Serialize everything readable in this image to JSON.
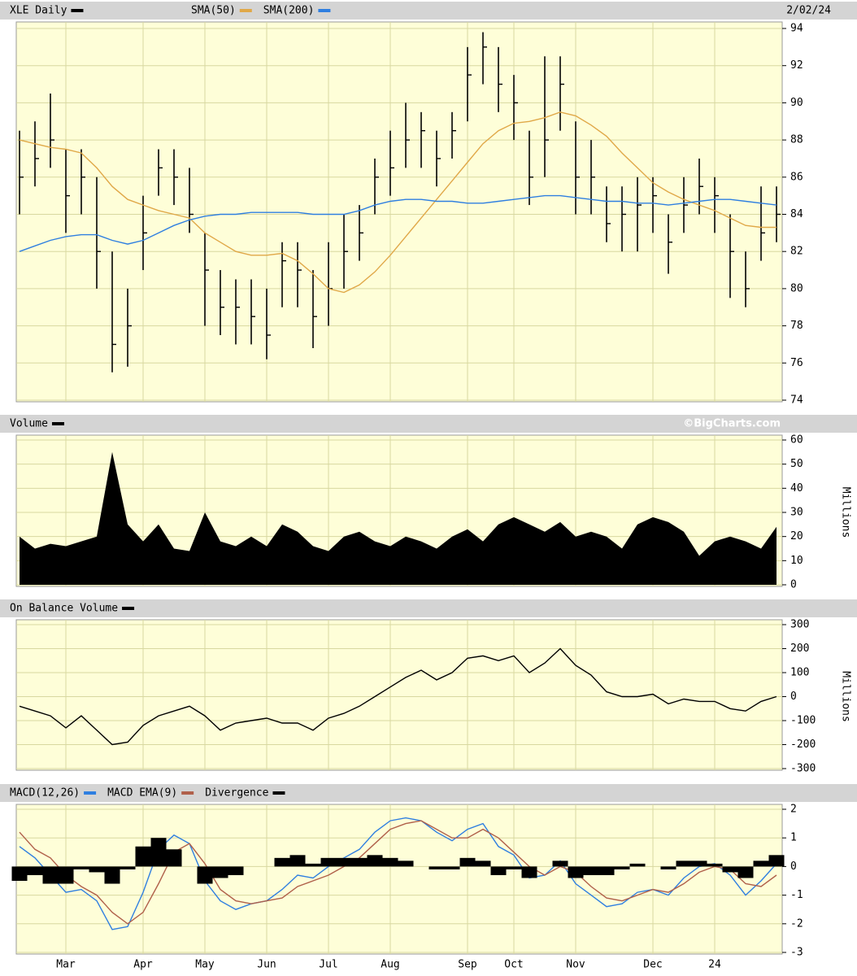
{
  "chart_data": [
    {
      "type": "ohlc",
      "date": "2/02/24",
      "ylim": [
        74,
        94
      ],
      "yticks": [
        74,
        76,
        78,
        80,
        82,
        84,
        86,
        88,
        90,
        92,
        94
      ],
      "grid": true,
      "series": [
        {
          "name": "XLE Daily",
          "color": "#000000",
          "kind": "ohlc",
          "values": [
            86,
            87,
            88,
            85,
            86,
            82,
            77,
            78,
            83,
            86.5,
            86,
            84,
            81,
            79,
            79,
            78.5,
            77.5,
            81.5,
            81,
            78.5,
            80,
            82,
            83,
            86,
            86.5,
            88,
            88.5,
            87,
            88.5,
            91.5,
            93,
            91,
            90,
            86,
            88,
            91,
            86,
            86,
            83.5,
            84,
            84.5,
            85,
            82.5,
            84.5,
            85.5,
            85,
            82,
            80,
            83,
            84
          ],
          "high": [
            88.5,
            89,
            90.5,
            87.5,
            87.5,
            86,
            82,
            80,
            85,
            87.5,
            87.5,
            86.5,
            83,
            81,
            80.5,
            80.5,
            80,
            82.5,
            82.5,
            81,
            82.5,
            84,
            84.5,
            87,
            88.5,
            90,
            89.5,
            88.5,
            89.5,
            93,
            93.8,
            93,
            91.5,
            88.5,
            92.5,
            92.5,
            89,
            88,
            85.5,
            85.5,
            86,
            86,
            84,
            86,
            87,
            86,
            84,
            82,
            85.5,
            85.5
          ],
          "low": [
            84,
            85.5,
            86.5,
            83,
            84,
            80,
            75.5,
            75.8,
            81,
            85,
            84.5,
            83,
            78,
            77.5,
            77,
            77,
            76.2,
            79,
            79,
            76.8,
            78,
            80,
            81.5,
            84,
            85,
            86.5,
            86.5,
            85.5,
            87,
            89,
            91,
            89.5,
            88,
            84.5,
            86,
            88.5,
            84,
            84,
            82.5,
            82,
            82,
            83,
            80.8,
            83,
            84,
            83,
            79.5,
            79,
            81.5,
            82.5
          ]
        },
        {
          "name": "SMA(50)",
          "color": "#e0a848",
          "kind": "line",
          "values": [
            88,
            87.8,
            87.6,
            87.5,
            87.3,
            86.5,
            85.5,
            84.8,
            84.5,
            84.2,
            84,
            83.8,
            83,
            82.5,
            82,
            81.8,
            81.8,
            81.9,
            81.5,
            80.8,
            80,
            79.8,
            80.2,
            80.9,
            81.8,
            82.8,
            83.8,
            84.8,
            85.8,
            86.8,
            87.8,
            88.5,
            88.9,
            89,
            89.2,
            89.5,
            89.3,
            88.8,
            88.2,
            87.3,
            86.5,
            85.7,
            85.2,
            84.8,
            84.5,
            84.2,
            83.8,
            83.4,
            83.3,
            83.3
          ]
        },
        {
          "name": "SMA(200)",
          "color": "#2f7fe0",
          "kind": "line",
          "values": [
            82,
            82.3,
            82.6,
            82.8,
            82.9,
            82.9,
            82.6,
            82.4,
            82.6,
            83,
            83.4,
            83.7,
            83.9,
            84,
            84,
            84.1,
            84.1,
            84.1,
            84.1,
            84,
            84,
            84,
            84.2,
            84.5,
            84.7,
            84.8,
            84.8,
            84.7,
            84.7,
            84.6,
            84.6,
            84.7,
            84.8,
            84.9,
            85,
            85,
            84.9,
            84.8,
            84.7,
            84.7,
            84.6,
            84.6,
            84.5,
            84.6,
            84.7,
            84.8,
            84.8,
            84.7,
            84.6,
            84.5
          ]
        }
      ]
    },
    {
      "type": "area",
      "credit": "©BigCharts.com",
      "ylabel": "Millions",
      "ylim": [
        0,
        60
      ],
      "yticks": [
        0,
        10,
        20,
        30,
        40,
        50,
        60
      ],
      "grid": true,
      "series": [
        {
          "name": "Volume",
          "color": "#000000",
          "kind": "area",
          "values": [
            20,
            15,
            17,
            16,
            18,
            20,
            55,
            25,
            18,
            25,
            15,
            14,
            30,
            18,
            16,
            20,
            16,
            25,
            22,
            16,
            14,
            20,
            22,
            18,
            16,
            20,
            18,
            15,
            20,
            23,
            18,
            25,
            28,
            25,
            22,
            26,
            20,
            22,
            20,
            15,
            25,
            28,
            26,
            22,
            12,
            18,
            20,
            18,
            15,
            24
          ]
        }
      ]
    },
    {
      "type": "line",
      "ylabel": "Millions",
      "ylim": [
        -300,
        300
      ],
      "yticks": [
        -300,
        -200,
        -100,
        0,
        100,
        200,
        300
      ],
      "grid": true,
      "series": [
        {
          "name": "On Balance Volume",
          "color": "#000000",
          "kind": "line",
          "values": [
            -40,
            -60,
            -80,
            -130,
            -80,
            -140,
            -200,
            -190,
            -120,
            -80,
            -60,
            -40,
            -80,
            -140,
            -110,
            -100,
            -90,
            -110,
            -110,
            -140,
            -90,
            -70,
            -40,
            0,
            40,
            80,
            110,
            70,
            100,
            160,
            170,
            150,
            170,
            100,
            140,
            200,
            130,
            90,
            20,
            0,
            0,
            10,
            -30,
            -10,
            -20,
            -20,
            -50,
            -60,
            -20,
            0
          ]
        }
      ]
    },
    {
      "type": "line",
      "ylim": [
        -3,
        2
      ],
      "yticks": [
        -3,
        -2,
        -1,
        0,
        1,
        2
      ],
      "grid": true,
      "categories": [
        null,
        null,
        null,
        "Mar",
        null,
        null,
        null,
        null,
        "Apr",
        null,
        null,
        null,
        "May",
        null,
        null,
        null,
        "Jun",
        null,
        null,
        null,
        "Jul",
        null,
        null,
        null,
        "Aug",
        null,
        null,
        null,
        null,
        "Sep",
        null,
        null,
        "Oct",
        null,
        null,
        null,
        "Nov",
        null,
        null,
        null,
        null,
        "Dec",
        null,
        null,
        null,
        "24",
        null,
        null,
        null,
        null
      ],
      "series": [
        {
          "name": "MACD(12,26)",
          "color": "#2f7fe0",
          "kind": "line",
          "values": [
            0.7,
            0.3,
            -0.3,
            -0.9,
            -0.8,
            -1.2,
            -2.2,
            -2.1,
            -0.9,
            0.6,
            1.1,
            0.8,
            -0.5,
            -1.2,
            -1.5,
            -1.3,
            -1.2,
            -0.8,
            -0.3,
            -0.4,
            0,
            0.3,
            0.6,
            1.2,
            1.6,
            1.7,
            1.6,
            1.2,
            0.9,
            1.3,
            1.5,
            0.7,
            0.4,
            -0.4,
            -0.3,
            0.2,
            -0.6,
            -1,
            -1.4,
            -1.3,
            -0.9,
            -0.8,
            -1,
            -0.4,
            0,
            0.1,
            -0.3,
            -1,
            -0.5,
            0.1
          ]
        },
        {
          "name": "MACD EMA(9)",
          "color": "#b0604a",
          "kind": "line",
          "values": [
            1.2,
            0.6,
            0.3,
            -0.3,
            -0.7,
            -1,
            -1.6,
            -2,
            -1.6,
            -0.6,
            0.5,
            0.8,
            0.1,
            -0.8,
            -1.2,
            -1.3,
            -1.2,
            -1.1,
            -0.7,
            -0.5,
            -0.3,
            0,
            0.3,
            0.8,
            1.3,
            1.5,
            1.6,
            1.3,
            1,
            1,
            1.3,
            1,
            0.5,
            0,
            -0.3,
            0,
            -0.2,
            -0.7,
            -1.1,
            -1.2,
            -1,
            -0.8,
            -0.9,
            -0.6,
            -0.2,
            0,
            -0.1,
            -0.6,
            -0.7,
            -0.3
          ]
        },
        {
          "name": "Divergence",
          "color": "#000000",
          "kind": "bar",
          "values": [
            -0.5,
            -0.3,
            -0.6,
            -0.6,
            -0.1,
            -0.2,
            -0.6,
            -0.1,
            0.7,
            1,
            0.6,
            0,
            -0.6,
            -0.4,
            -0.3,
            0,
            0,
            0.3,
            0.4,
            0.1,
            0.3,
            0.3,
            0.3,
            0.4,
            0.3,
            0.2,
            0,
            -0.1,
            -0.1,
            0.3,
            0.2,
            -0.3,
            -0.1,
            -0.4,
            0,
            0.2,
            -0.4,
            -0.3,
            -0.3,
            -0.1,
            0.1,
            0,
            -0.1,
            0.2,
            0.2,
            0.1,
            -0.2,
            -0.4,
            0.2,
            0.4
          ]
        }
      ]
    }
  ]
}
